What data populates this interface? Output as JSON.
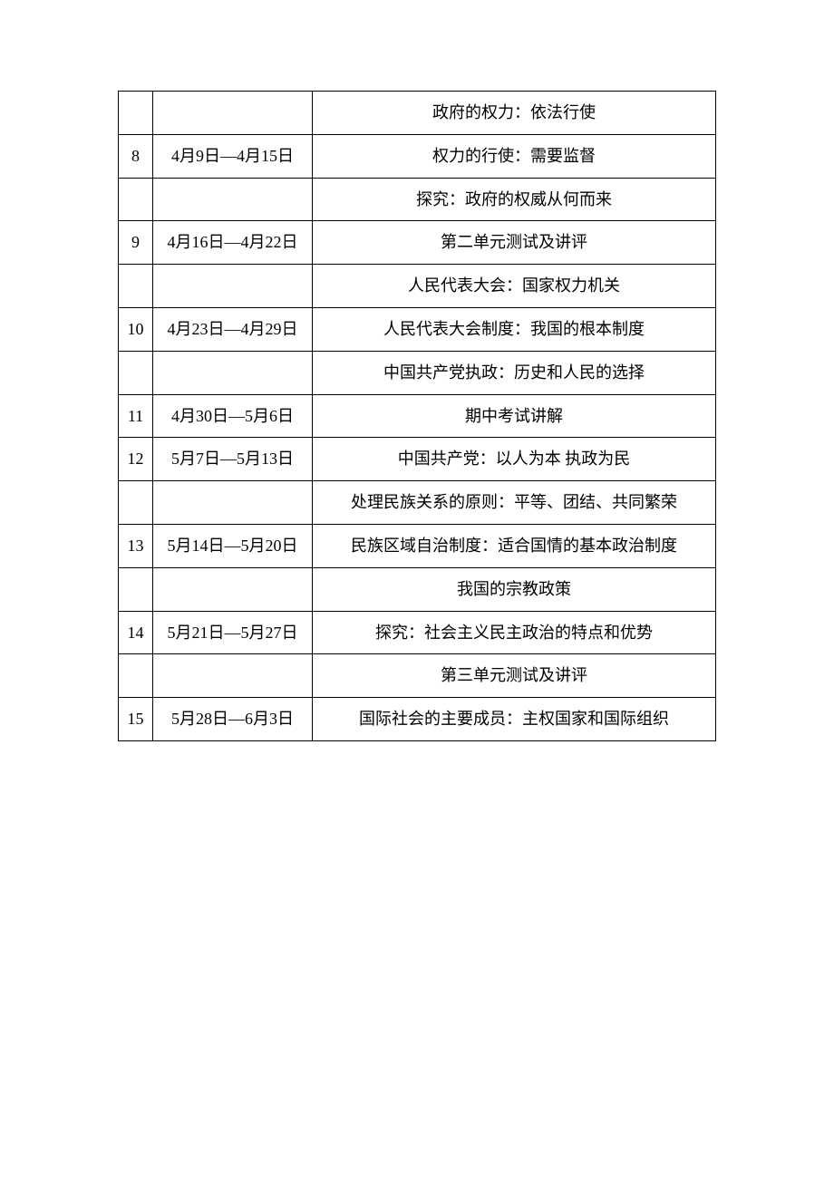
{
  "schedule": {
    "columns": [
      "week",
      "date_range",
      "content"
    ],
    "col_widths": [
      "38px",
      "176px",
      "auto"
    ],
    "border_color": "#000000",
    "background_color": "#ffffff",
    "font_size": 18,
    "line_height": 2.6,
    "rows": [
      {
        "week": "",
        "date": "",
        "content": "政府的权力：依法行使"
      },
      {
        "week": "8",
        "date": "4月9日—4月15日",
        "content": "权力的行使：需要监督"
      },
      {
        "week": "",
        "date": "",
        "content": "探究：政府的权威从何而来"
      },
      {
        "week": "9",
        "date": "4月16日—4月22日",
        "content": "第二单元测试及讲评"
      },
      {
        "week": "",
        "date": "",
        "content": "人民代表大会：国家权力机关"
      },
      {
        "week": "10",
        "date": "4月23日—4月29日",
        "content": "人民代表大会制度：我国的根本制度"
      },
      {
        "week": "",
        "date": "",
        "content": "中国共产党执政：历史和人民的选择"
      },
      {
        "week": "11",
        "date": "4月30日—5月6日",
        "content": "期中考试讲解"
      },
      {
        "week": "12",
        "date": "5月7日—5月13日",
        "content": "中国共产党：以人为本  执政为民"
      },
      {
        "week": "",
        "date": "",
        "content": "处理民族关系的原则：平等、团结、共同繁荣"
      },
      {
        "week": "13",
        "date": "5月14日—5月20日",
        "content": "民族区域自治制度：适合国情的基本政治制度"
      },
      {
        "week": "",
        "date": "",
        "content": "我国的宗教政策"
      },
      {
        "week": "14",
        "date": "5月21日—5月27日",
        "content": "探究：社会主义民主政治的特点和优势"
      },
      {
        "week": "",
        "date": "",
        "content": "第三单元测试及讲评"
      },
      {
        "week": "15",
        "date": "5月28日—6月3日",
        "content": "国际社会的主要成员：主权国家和国际组织"
      }
    ]
  }
}
